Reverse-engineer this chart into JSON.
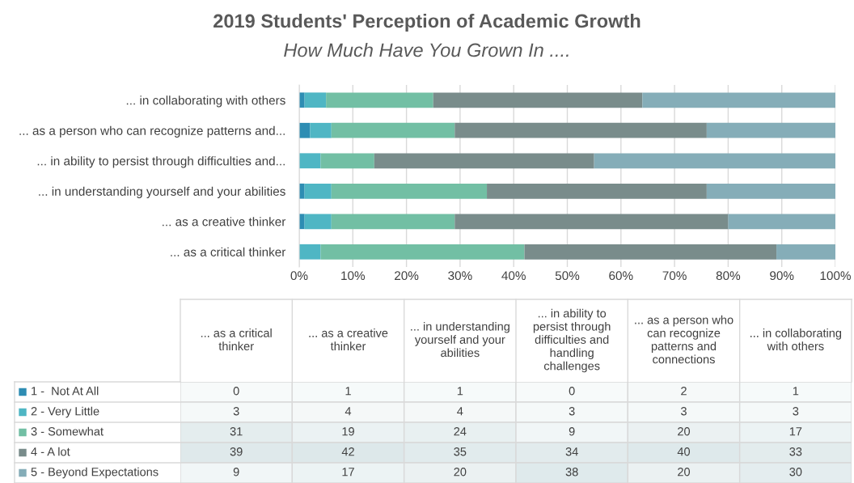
{
  "chart_data": [
    {
      "type": "bar",
      "orientation": "horizontal",
      "stacked": true,
      "title": "2019 Students' Perception of Academic Growth",
      "subtitle": "How Much Have You Grown In ....",
      "categories": [
        "... in collaborating with others",
        "... as a person who can recognize patterns and...",
        "... in ability to persist through difficulties and...",
        "... in understanding yourself and your abilities",
        "... as a creative thinker",
        "... as a critical thinker"
      ],
      "series": [
        {
          "color": "#2e8db3",
          "values": [
            1,
            2,
            0,
            1,
            1,
            0
          ]
        },
        {
          "color": "#4fb6c4",
          "values": [
            4,
            4,
            4,
            5,
            5,
            4
          ]
        },
        {
          "color": "#72bfa4",
          "values": [
            20,
            23,
            10,
            29,
            23,
            38
          ]
        },
        {
          "color": "#798c8b",
          "values": [
            39,
            47,
            41,
            41,
            51,
            47
          ]
        },
        {
          "color": "#85adb8",
          "values": [
            36,
            24,
            45,
            24,
            20,
            11
          ]
        }
      ],
      "xlim": [
        0,
        100
      ],
      "xticks": [
        {
          "value": 0,
          "label": "0%"
        },
        {
          "value": 10,
          "label": "10%"
        },
        {
          "value": 20,
          "label": "20%"
        },
        {
          "value": 30,
          "label": "30%"
        },
        {
          "value": 40,
          "label": "40%"
        },
        {
          "value": 50,
          "label": "50%"
        },
        {
          "value": 60,
          "label": "60%"
        },
        {
          "value": 70,
          "label": "70%"
        },
        {
          "value": 80,
          "label": "80%"
        },
        {
          "value": 90,
          "label": "90%"
        },
        {
          "value": 100,
          "label": "100%"
        }
      ],
      "grid": "x"
    },
    {
      "type": "heatmap",
      "categories": [
        "... as a critical thinker",
        "... as a creative thinker",
        "... in understanding yourself and your abilities",
        "... in ability to persist through difficulties and handling challenges",
        "... as a person who can recognize patterns and connections",
        "... in collaborating with others"
      ],
      "y_categories": [
        "1 -  Not At All",
        "2 - Very Little",
        "3 - Somewhat",
        "4 - A lot",
        "5 - Beyond Expectations"
      ],
      "cells": [
        [
          0,
          1,
          1,
          0,
          2,
          1
        ],
        [
          3,
          4,
          4,
          3,
          3,
          3
        ],
        [
          31,
          19,
          24,
          9,
          20,
          17
        ],
        [
          39,
          42,
          35,
          34,
          40,
          33
        ],
        [
          9,
          17,
          20,
          38,
          20,
          30
        ]
      ],
      "cell_labels": [
        [
          "0",
          "1",
          "1",
          "0",
          "2",
          "1"
        ],
        [
          "3",
          "4",
          "4",
          "3",
          "3",
          "3"
        ],
        [
          "31",
          "19",
          "24",
          "9",
          "20",
          "17"
        ],
        [
          "39",
          "42",
          "35",
          "34",
          "40",
          "33"
        ],
        [
          "9",
          "17",
          "20",
          "38",
          "20",
          "30"
        ]
      ]
    }
  ]
}
